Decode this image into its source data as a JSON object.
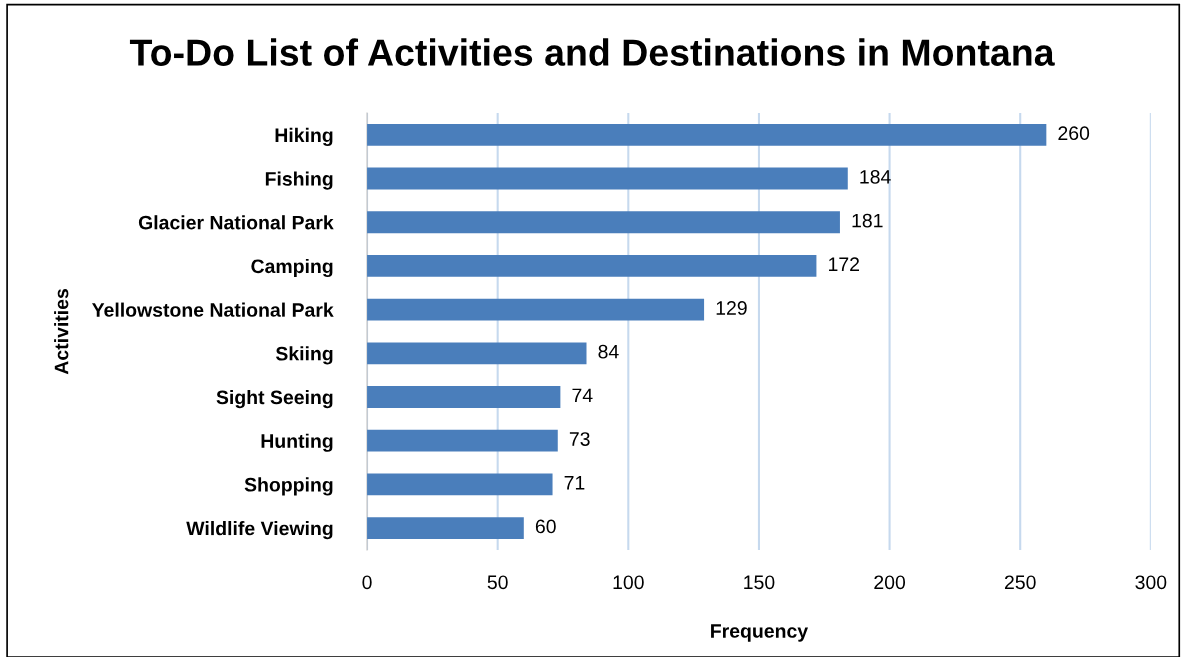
{
  "chart_data": {
    "type": "bar",
    "orientation": "horizontal",
    "title": "To-Do List of Activities and Destinations in Montana",
    "xlabel": "Frequency",
    "ylabel": "Activities",
    "categories": [
      "Hiking",
      "Fishing",
      "Glacier National Park",
      "Camping",
      "Yellowstone National Park",
      "Skiing",
      "Sight Seeing",
      "Hunting",
      "Shopping",
      "Wildlife Viewing"
    ],
    "values": [
      260,
      184,
      181,
      172,
      129,
      84,
      74,
      73,
      71,
      60
    ],
    "color": "#4a7ebb",
    "xlim": [
      0,
      300
    ],
    "xticks": [
      0,
      50,
      100,
      150,
      200,
      250,
      300
    ],
    "grid": "x",
    "data_labels": true,
    "legend": false
  }
}
